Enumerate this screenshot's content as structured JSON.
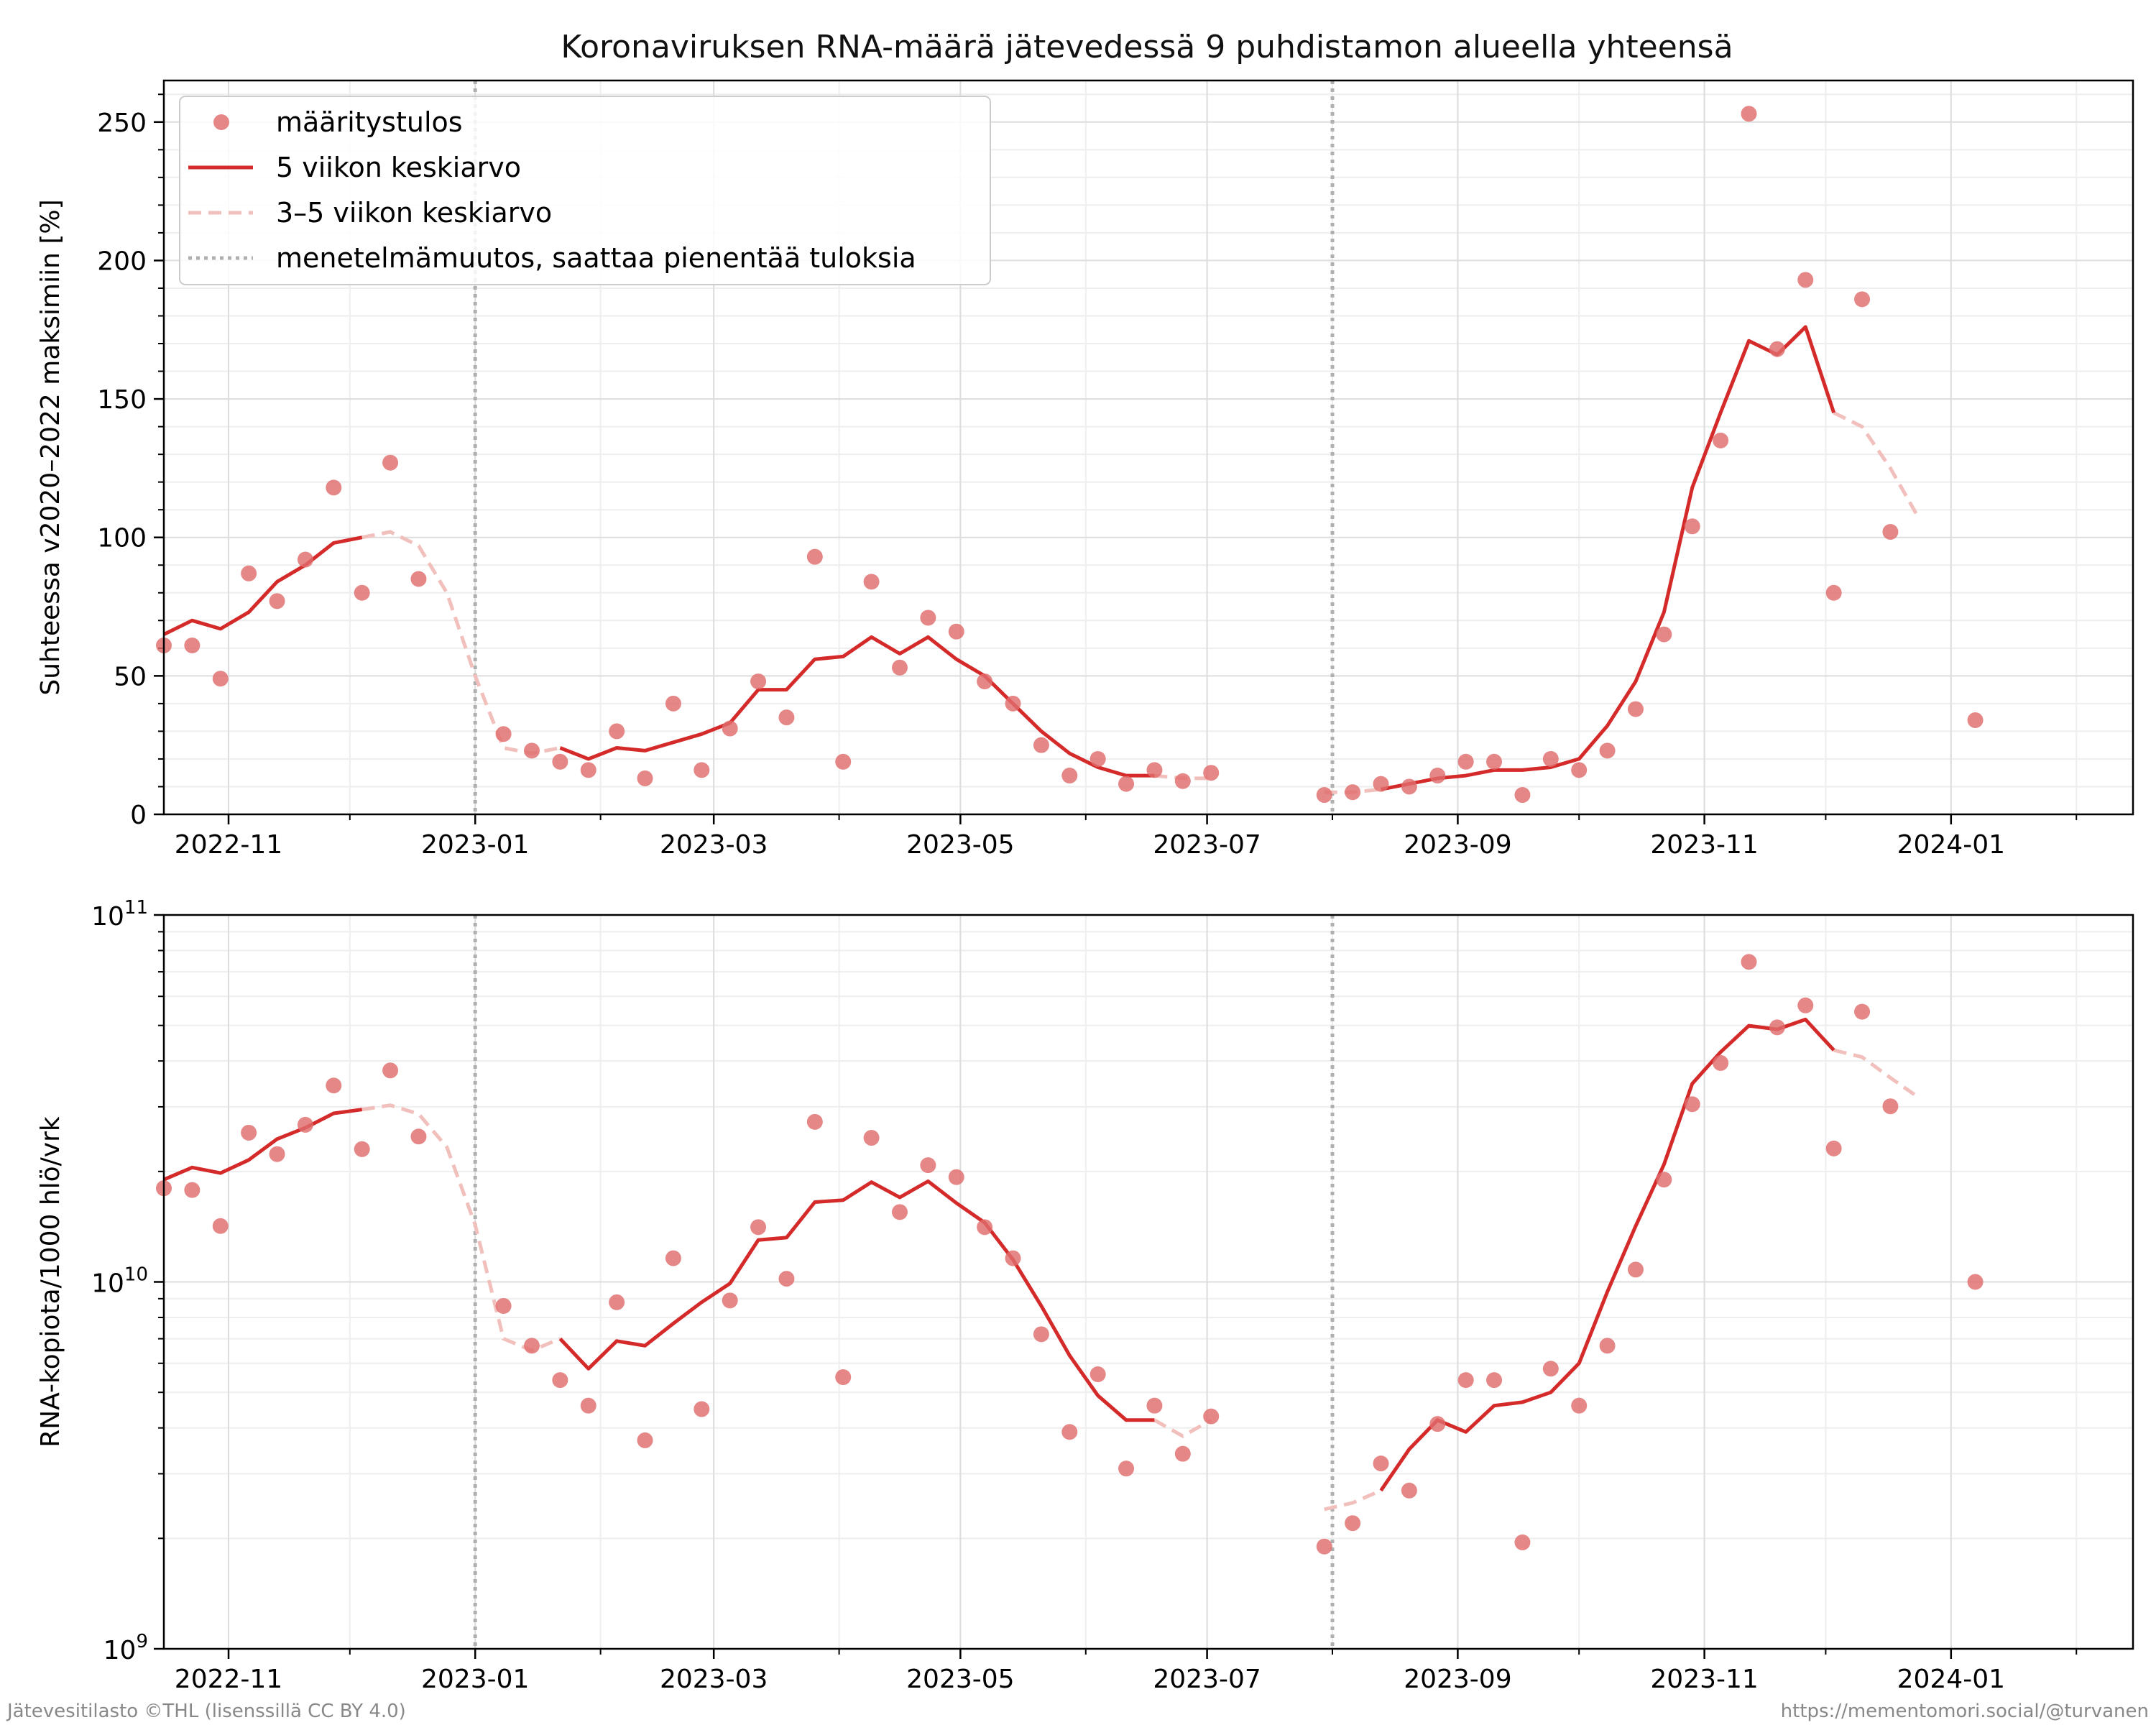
{
  "title": "Koronaviruksen RNA-määrä jätevedessä 9 puhdistamon alueella yhteensä",
  "footer_left": "Jätevesitilasto ©THL (lisenssillä CC BY 4.0)",
  "footer_right": "https://mementomori.social/@turvanen",
  "legend": [
    {
      "key": "points",
      "label": "määritystulos"
    },
    {
      "key": "avg5",
      "label": "5 viikon keskiarvo"
    },
    {
      "key": "avg35",
      "label": "3–5 viikon keskiarvo"
    },
    {
      "key": "method",
      "label": "menetelmämuutos, saattaa pienentää tuloksia"
    }
  ],
  "colors": {
    "points": "#e06c6c",
    "avg5": "#d42a2a",
    "avg35": "#f2c0bc",
    "method": "#b0b0b0",
    "grid": "#dddddd"
  },
  "chart_data": [
    {
      "type": "line",
      "panel": "top",
      "ylabel": "Suhteessa v2020–2022 maksimiin [%]",
      "yscale": "linear",
      "ylim": [
        0,
        265
      ],
      "yticks": [
        0,
        50,
        100,
        150,
        200,
        250
      ],
      "xlim": [
        "2022-10-16",
        "2024-02-15"
      ],
      "xticks": [
        "2022-11-01",
        "2023-01-01",
        "2023-03-01",
        "2023-05-01",
        "2023-07-01",
        "2023-09-01",
        "2023-11-01",
        "2024-01-01"
      ],
      "xticklabels": [
        "2022-11",
        "2023-01",
        "2023-03",
        "2023-05",
        "2023-07",
        "2023-09",
        "2023-11",
        "2024-01"
      ],
      "grid": true,
      "legend_position": "top-left",
      "method_changes": [
        "2023-01-01",
        "2023-08-01"
      ],
      "points": {
        "x": [
          "2022-10-16",
          "2022-10-23",
          "2022-10-30",
          "2022-11-06",
          "2022-11-13",
          "2022-11-20",
          "2022-11-27",
          "2022-12-04",
          "2022-12-11",
          "2022-12-18",
          "2023-01-08",
          "2023-01-15",
          "2023-01-22",
          "2023-01-29",
          "2023-02-05",
          "2023-02-12",
          "2023-02-19",
          "2023-02-26",
          "2023-03-05",
          "2023-03-12",
          "2023-03-19",
          "2023-03-26",
          "2023-04-02",
          "2023-04-09",
          "2023-04-16",
          "2023-04-23",
          "2023-04-30",
          "2023-05-07",
          "2023-05-14",
          "2023-05-21",
          "2023-05-28",
          "2023-06-04",
          "2023-06-11",
          "2023-06-18",
          "2023-06-25",
          "2023-07-02",
          "2023-07-30",
          "2023-08-06",
          "2023-08-13",
          "2023-08-20",
          "2023-08-27",
          "2023-09-03",
          "2023-09-10",
          "2023-09-17",
          "2023-09-24",
          "2023-10-01",
          "2023-10-08",
          "2023-10-15",
          "2023-10-22",
          "2023-10-29",
          "2023-11-05",
          "2023-11-12",
          "2023-11-19",
          "2023-11-26",
          "2023-12-03",
          "2023-12-10",
          "2023-12-17",
          "2024-01-07"
        ],
        "y": [
          61,
          61,
          49,
          87,
          77,
          92,
          118,
          80,
          127,
          85,
          29,
          23,
          19,
          16,
          30,
          13,
          40,
          16,
          31,
          48,
          35,
          93,
          19,
          84,
          53,
          71,
          66,
          48,
          40,
          25,
          14,
          20,
          11,
          16,
          12,
          15,
          7,
          8,
          11,
          10,
          14,
          19,
          19,
          7,
          20,
          16,
          23,
          38,
          65,
          104,
          135,
          253,
          168,
          193,
          80,
          186,
          102,
          34
        ]
      },
      "avg5": [
        {
          "x": [
            "2022-10-16",
            "2022-10-23",
            "2022-10-30",
            "2022-11-06",
            "2022-11-13",
            "2022-11-20",
            "2022-11-27",
            "2022-12-04"
          ],
          "y": [
            65,
            70,
            67,
            73,
            84,
            90,
            98,
            100
          ]
        },
        {
          "x": [
            "2023-01-22",
            "2023-01-29",
            "2023-02-05",
            "2023-02-12",
            "2023-02-19",
            "2023-02-26",
            "2023-03-05",
            "2023-03-12",
            "2023-03-19",
            "2023-03-26",
            "2023-04-02",
            "2023-04-09",
            "2023-04-16",
            "2023-04-23",
            "2023-04-30",
            "2023-05-07",
            "2023-05-14",
            "2023-05-21",
            "2023-05-28",
            "2023-06-04",
            "2023-06-11",
            "2023-06-18"
          ],
          "y": [
            24,
            20,
            24,
            23,
            26,
            29,
            33,
            45,
            45,
            56,
            57,
            64,
            58,
            64,
            56,
            50,
            40,
            30,
            22,
            17,
            14,
            14
          ]
        },
        {
          "x": [
            "2023-08-13",
            "2023-08-20",
            "2023-08-27",
            "2023-09-03",
            "2023-09-10",
            "2023-09-17",
            "2023-09-24",
            "2023-10-01",
            "2023-10-08",
            "2023-10-15",
            "2023-10-22",
            "2023-10-29",
            "2023-11-05",
            "2023-11-12",
            "2023-11-19",
            "2023-11-26",
            "2023-12-03"
          ],
          "y": [
            9,
            11,
            13,
            14,
            16,
            16,
            17,
            20,
            32,
            48,
            73,
            118,
            145,
            171,
            166,
            176,
            145
          ]
        }
      ],
      "avg35": [
        {
          "x": [
            "2022-12-04",
            "2022-12-11",
            "2022-12-18",
            "2022-12-25",
            "2023-01-01",
            "2023-01-08",
            "2023-01-15",
            "2023-01-22"
          ],
          "y": [
            100,
            102,
            97,
            80,
            50,
            24,
            22,
            24
          ]
        },
        {
          "x": [
            "2023-06-18",
            "2023-06-25",
            "2023-07-02"
          ],
          "y": [
            14,
            13,
            13
          ]
        },
        {
          "x": [
            "2023-07-30",
            "2023-08-06",
            "2023-08-13"
          ],
          "y": [
            8,
            8,
            9
          ]
        },
        {
          "x": [
            "2023-12-03",
            "2023-12-10",
            "2023-12-17",
            "2023-12-24"
          ],
          "y": [
            145,
            140,
            125,
            107
          ]
        }
      ]
    },
    {
      "type": "line",
      "panel": "bottom",
      "ylabel": "RNA-kopiota/1000 hlö/vrk",
      "yscale": "log",
      "ylim": [
        1000000000,
        100000000000
      ],
      "ytick_labels": [
        {
          "value": 1000000000,
          "base": "10",
          "exp": "9"
        },
        {
          "value": 10000000000,
          "base": "10",
          "exp": "10"
        },
        {
          "value": 100000000000,
          "base": "10",
          "exp": "11"
        }
      ],
      "xlim": [
        "2022-10-16",
        "2024-02-15"
      ],
      "xticks": [
        "2022-11-01",
        "2023-01-01",
        "2023-03-01",
        "2023-05-01",
        "2023-07-01",
        "2023-09-01",
        "2023-11-01",
        "2024-01-01"
      ],
      "xticklabels": [
        "2022-11",
        "2023-01",
        "2023-03",
        "2023-05",
        "2023-07",
        "2023-09",
        "2023-11",
        "2024-01"
      ],
      "grid": true,
      "method_changes": [
        "2023-01-01",
        "2023-08-01"
      ],
      "points": {
        "x": [
          "2022-10-16",
          "2022-10-23",
          "2022-10-30",
          "2022-11-06",
          "2022-11-13",
          "2022-11-20",
          "2022-11-27",
          "2022-12-04",
          "2022-12-11",
          "2022-12-18",
          "2023-01-08",
          "2023-01-15",
          "2023-01-22",
          "2023-01-29",
          "2023-02-05",
          "2023-02-12",
          "2023-02-19",
          "2023-02-26",
          "2023-03-05",
          "2023-03-12",
          "2023-03-19",
          "2023-03-26",
          "2023-04-02",
          "2023-04-09",
          "2023-04-16",
          "2023-04-23",
          "2023-04-30",
          "2023-05-07",
          "2023-05-14",
          "2023-05-21",
          "2023-05-28",
          "2023-06-04",
          "2023-06-11",
          "2023-06-18",
          "2023-06-25",
          "2023-07-02",
          "2023-07-30",
          "2023-08-06",
          "2023-08-13",
          "2023-08-20",
          "2023-08-27",
          "2023-09-03",
          "2023-09-10",
          "2023-09-17",
          "2023-09-24",
          "2023-10-01",
          "2023-10-08",
          "2023-10-15",
          "2023-10-22",
          "2023-10-29",
          "2023-11-05",
          "2023-11-12",
          "2023-11-19",
          "2023-11-26",
          "2023-12-03",
          "2023-12-10",
          "2023-12-17",
          "2024-01-07"
        ],
        "y": [
          18000000000,
          17800000000,
          14200000000,
          25500000000,
          22300000000,
          26800000000,
          34300000000,
          23000000000,
          37700000000,
          24900000000,
          8600000000,
          6700000000,
          5400000000,
          4600000000,
          8800000000,
          3700000000,
          11600000000,
          4500000000,
          8900000000,
          14100000000,
          10200000000,
          27300000000,
          5500000000,
          24700000000,
          15500000000,
          20800000000,
          19300000000,
          14100000000,
          11600000000,
          7200000000,
          3900000000,
          5600000000,
          3100000000,
          4600000000,
          3400000000,
          4300000000,
          1900000000,
          2200000000,
          3200000000,
          2700000000,
          4100000000,
          5400000000,
          5400000000,
          1950000000,
          5800000000,
          4600000000,
          6700000000,
          10800000000,
          19000000000,
          30500000000,
          39500000000,
          74500000000,
          49400000000,
          56700000000,
          23100000000,
          54500000000,
          30100000000,
          10000000000
        ]
      },
      "avg5": [
        {
          "x": [
            "2022-10-16",
            "2022-10-23",
            "2022-10-30",
            "2022-11-06",
            "2022-11-13",
            "2022-11-20",
            "2022-11-27",
            "2022-12-04"
          ],
          "y": [
            19000000000,
            20500000000,
            19800000000,
            21500000000,
            24500000000,
            26300000000,
            28800000000,
            29500000000
          ]
        },
        {
          "x": [
            "2023-01-22",
            "2023-01-29",
            "2023-02-05",
            "2023-02-12",
            "2023-02-19",
            "2023-02-26",
            "2023-03-05",
            "2023-03-12",
            "2023-03-19",
            "2023-03-26",
            "2023-04-02",
            "2023-04-09",
            "2023-04-16",
            "2023-04-23",
            "2023-04-30",
            "2023-05-07",
            "2023-05-14",
            "2023-05-21",
            "2023-05-28",
            "2023-06-04",
            "2023-06-11",
            "2023-06-18"
          ],
          "y": [
            7000000000,
            5800000000,
            6900000000,
            6700000000,
            7700000000,
            8800000000,
            9900000000,
            13000000000,
            13200000000,
            16500000000,
            16700000000,
            18700000000,
            17000000000,
            18800000000,
            16400000000,
            14500000000,
            11500000000,
            8600000000,
            6300000000,
            4900000000,
            4200000000,
            4200000000
          ]
        },
        {
          "x": [
            "2023-08-13",
            "2023-08-20",
            "2023-08-27",
            "2023-09-03",
            "2023-09-10",
            "2023-09-17",
            "2023-09-24",
            "2023-10-01",
            "2023-10-08",
            "2023-10-15",
            "2023-10-22",
            "2023-10-29",
            "2023-11-05",
            "2023-11-12",
            "2023-11-19",
            "2023-11-26",
            "2023-12-03"
          ],
          "y": [
            2700000000,
            3500000000,
            4200000000,
            3900000000,
            4600000000,
            4700000000,
            5000000000,
            6000000000,
            9400000000,
            14200000000,
            20900000000,
            34700000000,
            42300000000,
            49900000000,
            48800000000,
            51900000000,
            42800000000
          ]
        }
      ],
      "avg35": [
        {
          "x": [
            "2022-12-04",
            "2022-12-11",
            "2022-12-18",
            "2022-12-25",
            "2023-01-01",
            "2023-01-08",
            "2023-01-15",
            "2023-01-22"
          ],
          "y": [
            29500000000,
            30300000000,
            28700000000,
            23300000000,
            14300000000,
            7000000000,
            6500000000,
            7000000000
          ]
        },
        {
          "x": [
            "2023-06-18",
            "2023-06-25",
            "2023-07-02"
          ],
          "y": [
            4200000000,
            3800000000,
            4200000000
          ]
        },
        {
          "x": [
            "2023-07-30",
            "2023-08-06",
            "2023-08-13"
          ],
          "y": [
            2400000000,
            2500000000,
            2700000000
          ]
        },
        {
          "x": [
            "2023-12-03",
            "2023-12-10",
            "2023-12-17",
            "2023-12-24"
          ],
          "y": [
            42800000000,
            41000000000,
            36000000000,
            31800000000
          ]
        }
      ]
    }
  ]
}
